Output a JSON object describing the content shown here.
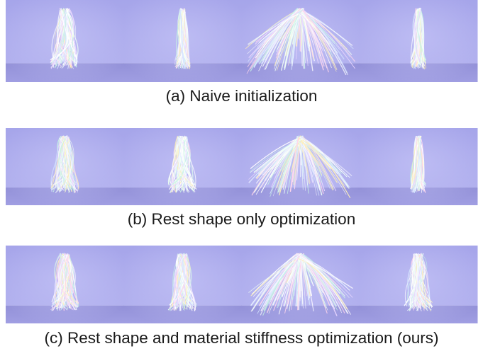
{
  "rows": [
    {
      "caption": "(a) Naive initialization"
    },
    {
      "caption": "(b) Rest shape only optimization"
    },
    {
      "caption": "(c) Rest shape and material stiffness optimization (ours)"
    }
  ]
}
